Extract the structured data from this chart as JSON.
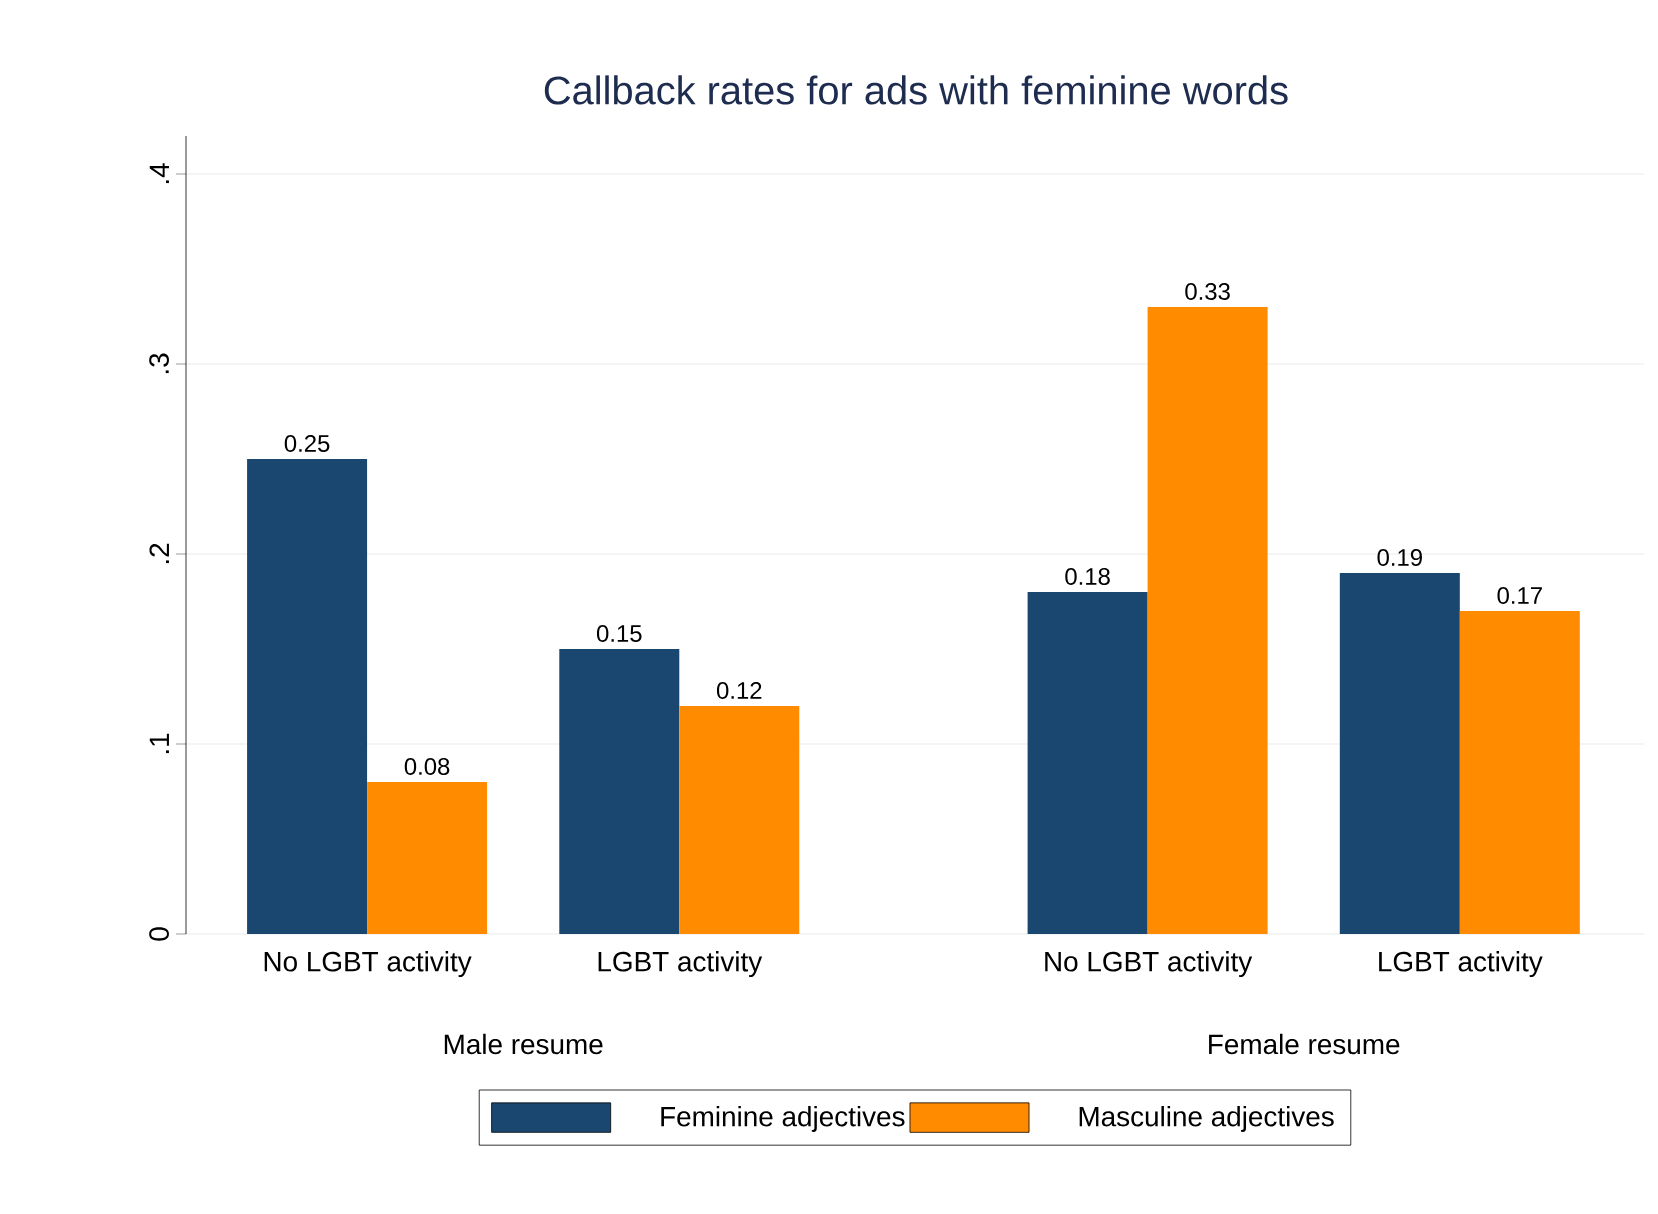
{
  "chart_data": {
    "type": "bar",
    "title": "Callback rates for ads with feminine words",
    "categories": [
      "No LGBT activity",
      "LGBT activity",
      "No LGBT activity",
      "LGBT activity"
    ],
    "annotations": [
      "Male resume",
      "Female resume"
    ],
    "series": [
      {
        "name": "Feminine adjectives",
        "color": "#1a476f",
        "values": [
          0.25,
          0.15,
          0.18,
          0.19
        ]
      },
      {
        "name": "Masculine adjectives",
        "color": "#ff8c00",
        "values": [
          0.08,
          0.12,
          0.33,
          0.17
        ]
      }
    ],
    "ylim": [
      0,
      0.42
    ],
    "yticks": [
      0,
      {
        "value": 0.1,
        "label": ".1"
      },
      {
        "value": 0.2,
        "label": ".2"
      },
      {
        "value": 0.3,
        "label": ".3"
      },
      {
        "value": 0.4,
        "label": ".4"
      }
    ],
    "grid": "y",
    "legend": "bottom",
    "data_labels": true
  }
}
